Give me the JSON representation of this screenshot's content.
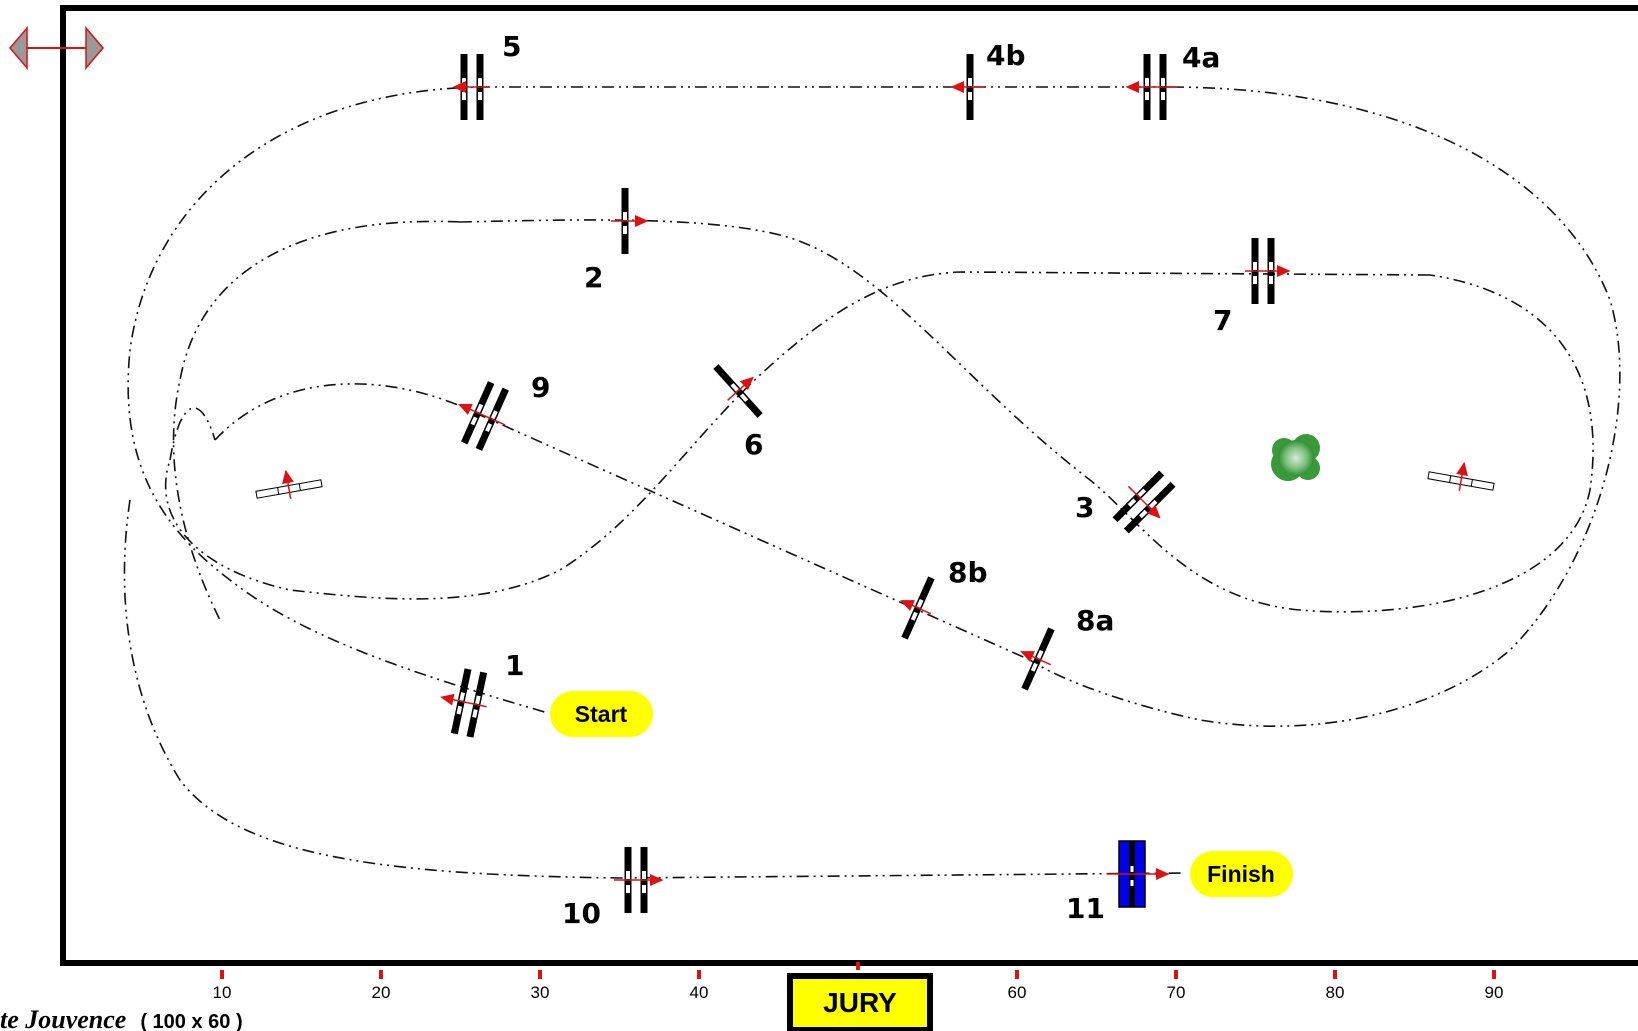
{
  "arena": {
    "caption": "te Jouvence",
    "dimensions": "( 100 x 60 )"
  },
  "labels": {
    "start": "Start",
    "finish": "Finish",
    "jury": "JURY"
  },
  "obstacles": [
    {
      "id": "1",
      "label": "1"
    },
    {
      "id": "2",
      "label": "2"
    },
    {
      "id": "3",
      "label": "3"
    },
    {
      "id": "4a",
      "label": "4a"
    },
    {
      "id": "4b",
      "label": "4b"
    },
    {
      "id": "5",
      "label": "5"
    },
    {
      "id": "6",
      "label": "6"
    },
    {
      "id": "7",
      "label": "7"
    },
    {
      "id": "8a",
      "label": "8a"
    },
    {
      "id": "8b",
      "label": "8b"
    },
    {
      "id": "9",
      "label": "9"
    },
    {
      "id": "10",
      "label": "10"
    },
    {
      "id": "11",
      "label": "11"
    }
  ],
  "axis_ticks": [
    "10",
    "20",
    "30",
    "40",
    "60",
    "70",
    "80",
    "90"
  ],
  "colors": {
    "path": "#111111",
    "arrow": "#dd1111",
    "start_badge": "#ffff00",
    "finish_jump": "#0000ee",
    "tree": "#3a9a3a"
  }
}
